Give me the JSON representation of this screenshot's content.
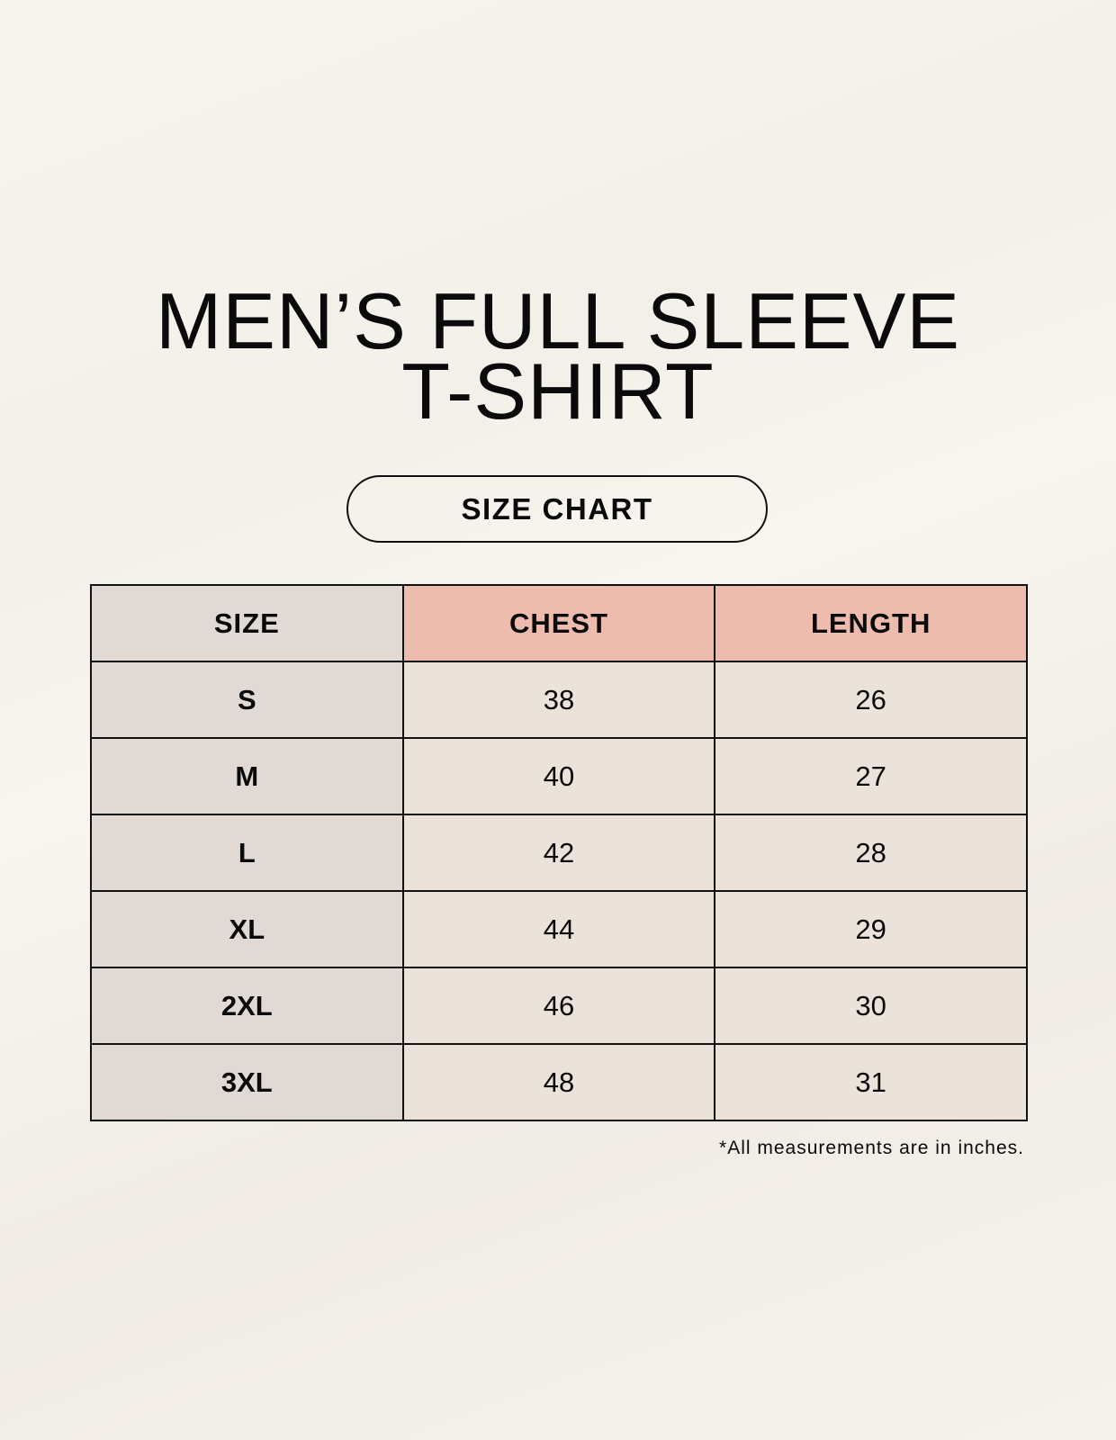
{
  "title": {
    "line1": "MEN’S FULL SLEEVE",
    "line2": "T-SHIRT"
  },
  "badge": "SIZE CHART",
  "table": {
    "headers": [
      "SIZE",
      "CHEST",
      "LENGTH"
    ],
    "rows": [
      [
        "S",
        "38",
        "26"
      ],
      [
        "M",
        "40",
        "27"
      ],
      [
        "L",
        "42",
        "28"
      ],
      [
        "XL",
        "44",
        "29"
      ],
      [
        "2XL",
        "46",
        "30"
      ],
      [
        "3XL",
        "48",
        "31"
      ]
    ]
  },
  "footnote": "*All measurements are in inches.",
  "colors": {
    "background": "#f8f5ee",
    "size_column": "#e0d9d4",
    "header_accent": "#edbcae",
    "cell": "#ebe3d9"
  }
}
